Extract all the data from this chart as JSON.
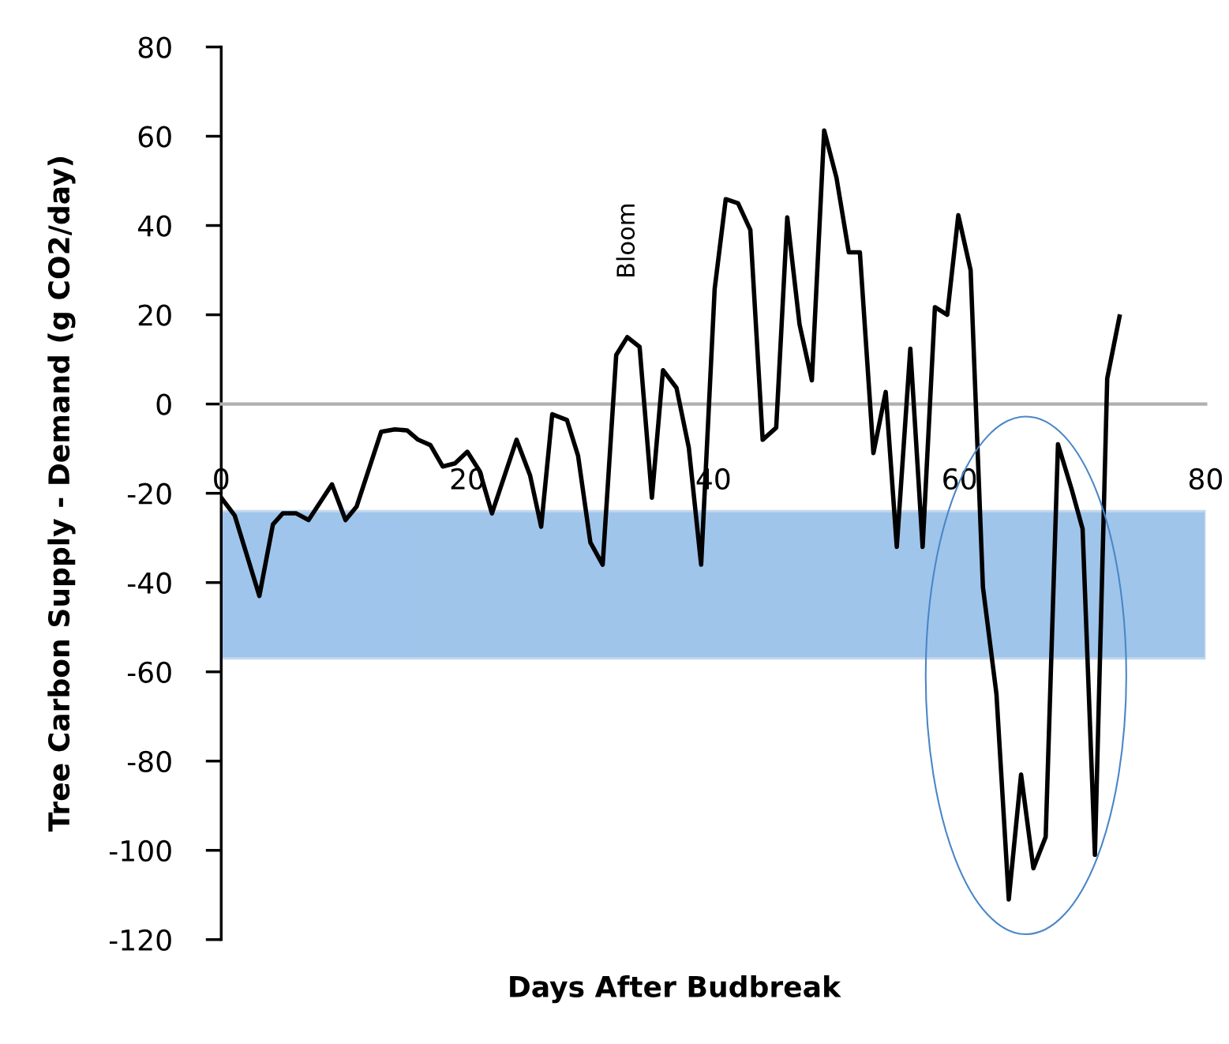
{
  "chart_data": {
    "type": "line",
    "xlabel": "Days After Budbreak",
    "ylabel": "Tree Carbon Supply - Demand (g CO2/day)",
    "x": [
      0,
      1.1,
      3.1,
      4.2,
      5,
      6.1,
      7.1,
      9,
      10.1,
      11,
      13,
      14.1,
      15.1,
      16,
      17,
      18,
      19,
      20,
      21,
      22,
      24,
      25.1,
      26,
      26.9,
      28.1,
      29,
      30,
      31,
      32.1,
      33,
      34,
      35,
      35.9,
      37,
      38,
      39,
      40.1,
      41,
      42,
      43,
      44,
      45.1,
      46,
      47,
      48,
      49,
      50,
      51,
      51.9,
      53,
      54,
      54.9,
      56,
      57,
      58,
      59,
      59.9,
      60.9,
      61.9,
      63,
      64,
      65,
      66,
      67,
      68,
      69.1,
      70,
      71,
      72,
      73
    ],
    "series": [
      {
        "color": "#000000",
        "values": [
          -21,
          -25,
          -43,
          -27,
          -24.5,
          -24.5,
          -26,
          -18,
          -26,
          -23,
          -6.2,
          -5.7,
          -5.9,
          -8,
          -9.2,
          -14,
          -13.3,
          -10.7,
          -15,
          -24.5,
          -8,
          -16,
          -27.5,
          -2.3,
          -3.6,
          -11.6,
          -31,
          -36,
          11,
          15,
          12.8,
          -21,
          7.6,
          3.6,
          -9.8,
          -36,
          25.8,
          45.9,
          45,
          39,
          -8,
          -5.3,
          41.8,
          17.8,
          5.3,
          61.3,
          50.7,
          34,
          34,
          -11,
          2.7,
          -32,
          12.4,
          -32,
          21.7,
          20,
          42.3,
          30,
          -41,
          -65,
          -111,
          -83,
          -104,
          -97,
          -9,
          -19,
          -28,
          -101,
          5.7,
          19.6
        ]
      }
    ],
    "xlim": [
      0,
      80
    ],
    "xticks": [
      0,
      20,
      40,
      60,
      80
    ],
    "ylim": [
      -120,
      80
    ],
    "yticks": [
      -120,
      -100,
      -80,
      -60,
      -40,
      -20,
      0,
      20,
      40,
      60,
      80
    ],
    "bands": [
      {
        "axis": "y",
        "from": -57,
        "to": -24,
        "color": "#2e7fd4"
      }
    ],
    "annotations": [
      "Bloom"
    ],
    "grid": false,
    "legend": false,
    "marker": "none",
    "line_style": "solid"
  }
}
